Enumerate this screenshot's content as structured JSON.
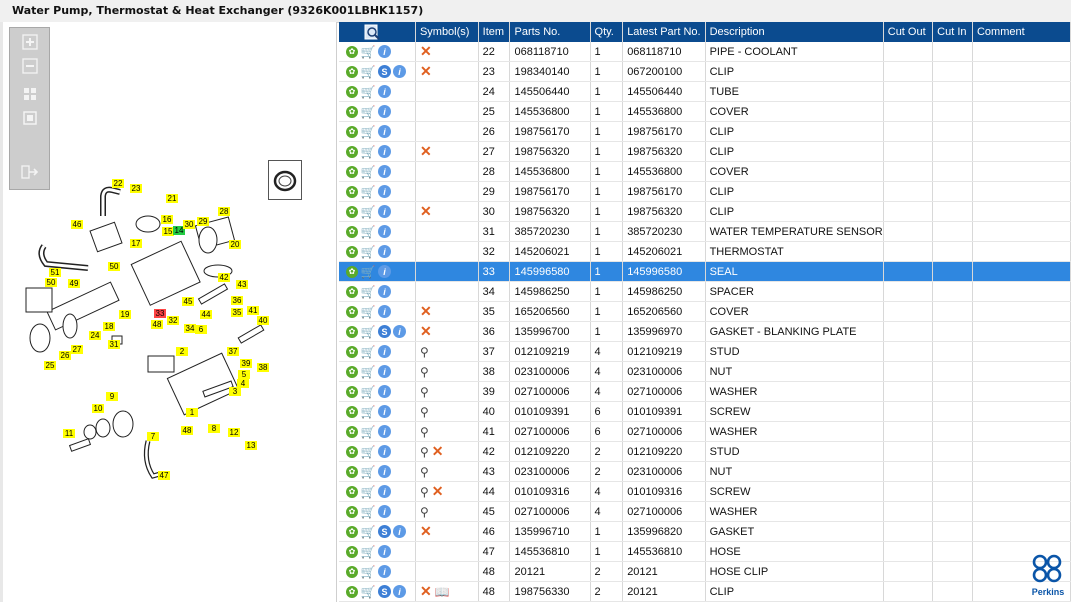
{
  "window": {
    "title": "Water Pump, Thermostat & Heat Exchanger (9326K001LBHK1157)"
  },
  "toolbar": {
    "buttons": [
      "zoom-in",
      "zoom-out",
      "fit-all",
      "fit-window",
      "export"
    ]
  },
  "grid": {
    "columns": [
      "",
      "Symbol(s)",
      "Item",
      "Parts No.",
      "Qty.",
      "Latest Part No.",
      "Description",
      "Cut Out",
      "Cut In",
      "Comment"
    ],
    "selected_index": 11,
    "rows": [
      {
        "item": "22",
        "parts_no": "068118710",
        "qty": "1",
        "latest": "068118710",
        "desc": "PIPE - COOLANT",
        "s": false,
        "sym": [
          "x"
        ]
      },
      {
        "item": "23",
        "parts_no": "198340140",
        "qty": "1",
        "latest": "067200100",
        "desc": "CLIP",
        "s": true,
        "sym": [
          "x"
        ]
      },
      {
        "item": "24",
        "parts_no": "145506440",
        "qty": "1",
        "latest": "145506440",
        "desc": "TUBE",
        "s": false,
        "sym": []
      },
      {
        "item": "25",
        "parts_no": "145536800",
        "qty": "1",
        "latest": "145536800",
        "desc": "COVER",
        "s": false,
        "sym": []
      },
      {
        "item": "26",
        "parts_no": "198756170",
        "qty": "1",
        "latest": "198756170",
        "desc": "CLIP",
        "s": false,
        "sym": []
      },
      {
        "item": "27",
        "parts_no": "198756320",
        "qty": "1",
        "latest": "198756320",
        "desc": "CLIP",
        "s": false,
        "sym": [
          "x"
        ]
      },
      {
        "item": "28",
        "parts_no": "145536800",
        "qty": "1",
        "latest": "145536800",
        "desc": "COVER",
        "s": false,
        "sym": []
      },
      {
        "item": "29",
        "parts_no": "198756170",
        "qty": "1",
        "latest": "198756170",
        "desc": "CLIP",
        "s": false,
        "sym": []
      },
      {
        "item": "30",
        "parts_no": "198756320",
        "qty": "1",
        "latest": "198756320",
        "desc": "CLIP",
        "s": false,
        "sym": [
          "x"
        ]
      },
      {
        "item": "31",
        "parts_no": "385720230",
        "qty": "1",
        "latest": "385720230",
        "desc": "WATER TEMPERATURE SENSOR",
        "s": false,
        "sym": []
      },
      {
        "item": "32",
        "parts_no": "145206021",
        "qty": "1",
        "latest": "145206021",
        "desc": "THERMOSTAT",
        "s": false,
        "sym": []
      },
      {
        "item": "33",
        "parts_no": "145996580",
        "qty": "1",
        "latest": "145996580",
        "desc": "SEAL",
        "s": false,
        "sym": []
      },
      {
        "item": "34",
        "parts_no": "145986250",
        "qty": "1",
        "latest": "145986250",
        "desc": "SPACER",
        "s": false,
        "sym": []
      },
      {
        "item": "35",
        "parts_no": "165206560",
        "qty": "1",
        "latest": "165206560",
        "desc": "COVER",
        "s": false,
        "sym": [
          "x"
        ]
      },
      {
        "item": "36",
        "parts_no": "135996700",
        "qty": "1",
        "latest": "135996970",
        "desc": "GASKET - BLANKING PLATE",
        "s": true,
        "sym": [
          "x"
        ]
      },
      {
        "item": "37",
        "parts_no": "012109219",
        "qty": "4",
        "latest": "012109219",
        "desc": "STUD",
        "s": false,
        "sym": [
          "pin"
        ]
      },
      {
        "item": "38",
        "parts_no": "023100006",
        "qty": "4",
        "latest": "023100006",
        "desc": "NUT",
        "s": false,
        "sym": [
          "pin"
        ]
      },
      {
        "item": "39",
        "parts_no": "027100006",
        "qty": "4",
        "latest": "027100006",
        "desc": "WASHER",
        "s": false,
        "sym": [
          "pin"
        ]
      },
      {
        "item": "40",
        "parts_no": "010109391",
        "qty": "6",
        "latest": "010109391",
        "desc": "SCREW",
        "s": false,
        "sym": [
          "pin"
        ]
      },
      {
        "item": "41",
        "parts_no": "027100006",
        "qty": "6",
        "latest": "027100006",
        "desc": "WASHER",
        "s": false,
        "sym": [
          "pin"
        ]
      },
      {
        "item": "42",
        "parts_no": "012109220",
        "qty": "2",
        "latest": "012109220",
        "desc": "STUD",
        "s": false,
        "sym": [
          "pin",
          "x"
        ]
      },
      {
        "item": "43",
        "parts_no": "023100006",
        "qty": "2",
        "latest": "023100006",
        "desc": "NUT",
        "s": false,
        "sym": [
          "pin"
        ]
      },
      {
        "item": "44",
        "parts_no": "010109316",
        "qty": "4",
        "latest": "010109316",
        "desc": "SCREW",
        "s": false,
        "sym": [
          "pin",
          "x"
        ]
      },
      {
        "item": "45",
        "parts_no": "027100006",
        "qty": "4",
        "latest": "027100006",
        "desc": "WASHER",
        "s": false,
        "sym": [
          "pin"
        ]
      },
      {
        "item": "46",
        "parts_no": "135996710",
        "qty": "1",
        "latest": "135996820",
        "desc": "GASKET",
        "s": true,
        "sym": [
          "x"
        ]
      },
      {
        "item": "47",
        "parts_no": "145536810",
        "qty": "1",
        "latest": "145536810",
        "desc": "HOSE",
        "s": false,
        "sym": []
      },
      {
        "item": "48",
        "parts_no": "20121",
        "qty": "2",
        "latest": "20121",
        "desc": "HOSE CLIP",
        "s": false,
        "sym": []
      },
      {
        "item": "48",
        "parts_no": "198756330",
        "qty": "2",
        "latest": "20121",
        "desc": "CLIP",
        "s": true,
        "sym": [
          "x",
          "book"
        ]
      }
    ]
  },
  "diagram": {
    "callouts": [
      "22",
      "23",
      "21",
      "46",
      "16",
      "15",
      "14",
      "30",
      "29",
      "28",
      "17",
      "20",
      "51",
      "50",
      "49",
      "50",
      "19",
      "18",
      "42",
      "43",
      "45",
      "33",
      "48",
      "32",
      "35",
      "34",
      "44",
      "36",
      "41",
      "40",
      "31",
      "27",
      "26",
      "24",
      "25",
      "37",
      "39",
      "38",
      "2",
      "3",
      "4",
      "5",
      "1",
      "9",
      "10",
      "11",
      "12",
      "13",
      "8",
      "7",
      "6",
      "48",
      "47"
    ],
    "highlight_red": "33",
    "highlight_green": "14"
  },
  "brand": {
    "name": "Perkins",
    "color": "#0a55a8"
  },
  "colors": {
    "header": "#0b4b8f",
    "selection": "#2f87e0",
    "callout": "#ffff00"
  }
}
